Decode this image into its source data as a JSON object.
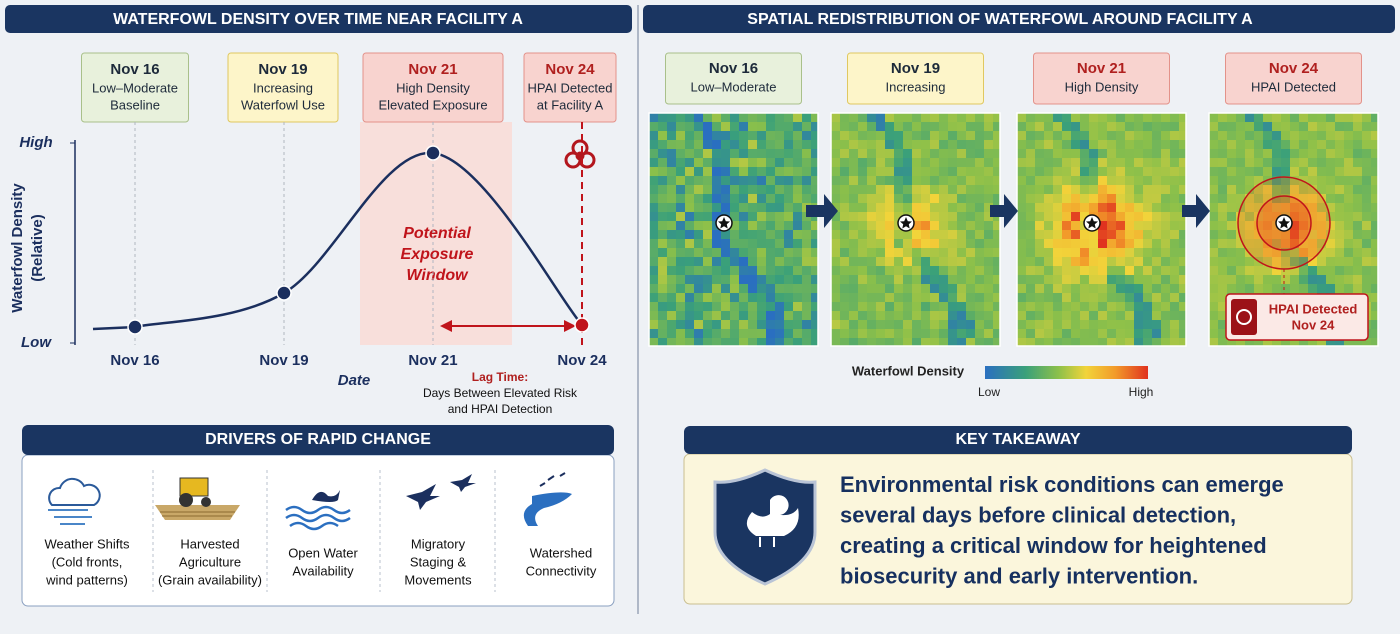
{
  "left_panel": {
    "title": "WATERFOWL DENSITY OVER TIME NEAR FACILITY A",
    "milestones": [
      {
        "date": "Nov 16",
        "lines": [
          "Low–Moderate",
          "Baseline"
        ],
        "fill": "#e8f1dc",
        "border": "#a9c08a",
        "date_color": "#1d2a3a"
      },
      {
        "date": "Nov 19",
        "lines": [
          "Increasing",
          "Waterfowl Use"
        ],
        "fill": "#fdf5c9",
        "border": "#e0c860",
        "date_color": "#1d2a3a"
      },
      {
        "date": "Nov 21",
        "lines": [
          "High Density",
          "Elevated Exposure"
        ],
        "fill": "#f8d3cf",
        "border": "#e3928a",
        "date_color": "#b0201f"
      },
      {
        "date": "Nov 24",
        "lines": [
          "HPAI Detected",
          "at Facility A"
        ],
        "fill": "#f8d3cf",
        "border": "#e3928a",
        "date_color": "#b0201f"
      }
    ]
  },
  "chart_data": {
    "type": "line",
    "y_label": [
      "Waterfowl Density",
      "(Relative)"
    ],
    "x_label": "Date",
    "categories": [
      "Nov 16",
      "Nov 19",
      "Nov 21",
      "Nov 24"
    ],
    "values": [
      0.08,
      0.25,
      0.95,
      0.09
    ],
    "ylim": [
      0,
      1
    ],
    "yticks": [
      {
        "value": 0,
        "label": "Low"
      },
      {
        "value": 1,
        "label": "High"
      }
    ],
    "color": "#1b2f5e",
    "highlight_color": "#c0141b",
    "window_label": [
      "Potential",
      "Exposure",
      "Window"
    ],
    "lag_title": "Lag Time:",
    "lag_lines": [
      "Days Between Elevated Risk",
      "and HPAI Detection"
    ]
  },
  "drivers": {
    "title": "DRIVERS OF RAPID CHANGE",
    "items": [
      {
        "lines": [
          "Weather Shifts",
          "(Cold fronts,",
          "wind patterns)"
        ]
      },
      {
        "lines": [
          "Harvested",
          "Agriculture",
          "(Grain availability)"
        ]
      },
      {
        "lines": [
          "Open Water",
          "Availability"
        ]
      },
      {
        "lines": [
          "Migratory",
          "Staging &",
          "Movements"
        ]
      },
      {
        "lines": [
          "Watershed",
          "Connectivity"
        ]
      }
    ]
  },
  "right_panel": {
    "title": "SPATIAL REDISTRIBUTION OF WATERFOWL AROUND FACILITY A",
    "maps": [
      {
        "date": "Nov 16",
        "label": "Low–Moderate",
        "fill": "#e8f1dc",
        "border": "#a9c08a",
        "date_color": "#1d2a3a"
      },
      {
        "date": "Nov 19",
        "label": "Increasing",
        "fill": "#fdf5c9",
        "border": "#e0c860",
        "date_color": "#1d2a3a"
      },
      {
        "date": "Nov 21",
        "label": "High Density",
        "fill": "#f8d3cf",
        "border": "#e3928a",
        "date_color": "#b0201f"
      },
      {
        "date": "Nov 24",
        "label": "HPAI Detected",
        "fill": "#f8d3cf",
        "border": "#e3928a",
        "date_color": "#b0201f"
      }
    ],
    "callout": [
      "HPAI Detected",
      "Nov 24"
    ],
    "legend": {
      "title": "Waterfowl Density",
      "low": "Low",
      "high": "High"
    }
  },
  "takeaway": {
    "title": "KEY TAKEAWAY",
    "lines": [
      "Environmental risk conditions can emerge",
      "several days before clinical detection,",
      "creating a critical window for heightened",
      "biosecurity and early intervention."
    ]
  }
}
